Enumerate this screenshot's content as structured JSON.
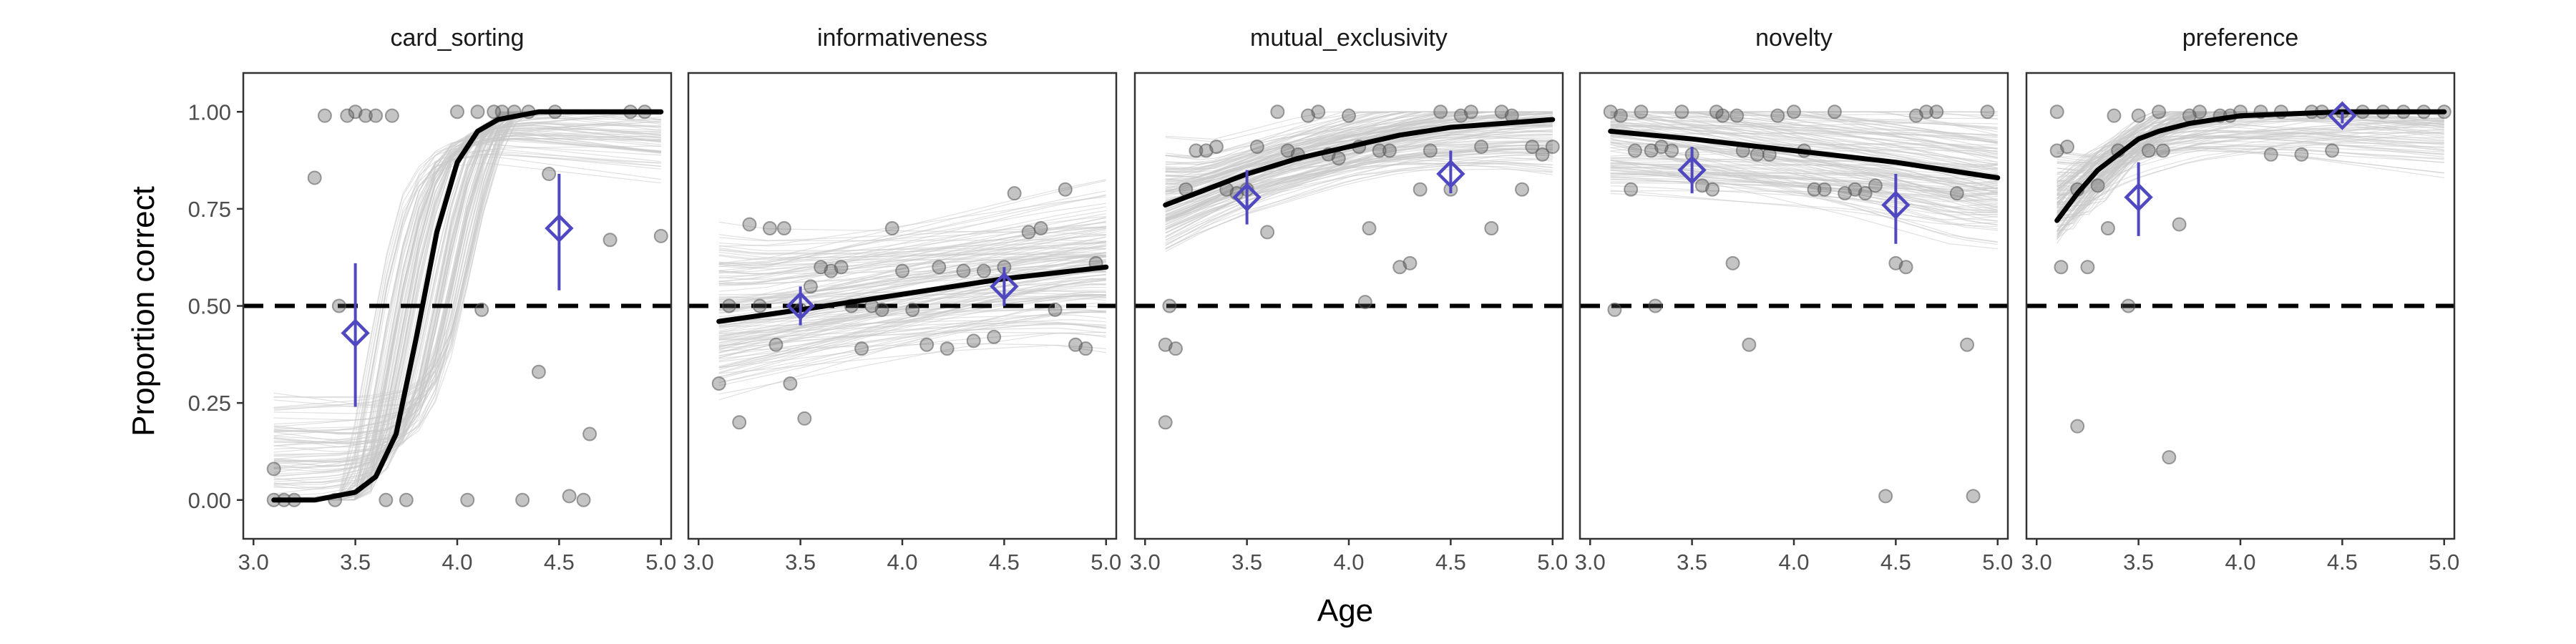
{
  "figure": {
    "xlabel": "Age",
    "ylabel": "Proportion correct"
  },
  "chart_data": {
    "type": "scatter",
    "facets": [
      "card_sorting",
      "informativeness",
      "mutual_exclusivity",
      "novelty",
      "preference"
    ],
    "xlim": [
      2.95,
      5.05
    ],
    "ylim": [
      -0.1,
      1.1
    ],
    "x_ticks": [
      3.0,
      3.5,
      4.0,
      4.5,
      5.0
    ],
    "x_tick_labels": [
      "3.0",
      "3.5",
      "4.0",
      "4.5",
      "5.0"
    ],
    "y_ticks": [
      0,
      0.25,
      0.5,
      0.75,
      1.0
    ],
    "y_tick_labels": [
      "0.00",
      "0.25",
      "0.50",
      "0.75",
      "1.00"
    ],
    "chance_line": 0.5,
    "grid": false,
    "colors": {
      "points": "#555555",
      "posterior_draws": "#c8c8c8",
      "mean_curve": "#000000",
      "chance_line": "#000000",
      "group_means": "#5048c0"
    },
    "panels": [
      {
        "name": "card_sorting",
        "points": [
          [
            3.1,
            0.08
          ],
          [
            3.1,
            0.0
          ],
          [
            3.15,
            0.0
          ],
          [
            3.2,
            0.0
          ],
          [
            3.3,
            0.83
          ],
          [
            3.35,
            0.99
          ],
          [
            3.4,
            0.0
          ],
          [
            3.42,
            0.5
          ],
          [
            3.46,
            0.99
          ],
          [
            3.5,
            1.0
          ],
          [
            3.55,
            0.99
          ],
          [
            3.6,
            0.99
          ],
          [
            3.65,
            0.0
          ],
          [
            3.68,
            0.99
          ],
          [
            3.75,
            0.0
          ],
          [
            4.0,
            1.0
          ],
          [
            4.05,
            0.0
          ],
          [
            4.1,
            1.0
          ],
          [
            4.12,
            0.49
          ],
          [
            4.18,
            1.0
          ],
          [
            4.22,
            1.0
          ],
          [
            4.28,
            1.0
          ],
          [
            4.32,
            0.0
          ],
          [
            4.35,
            1.0
          ],
          [
            4.4,
            0.33
          ],
          [
            4.45,
            0.84
          ],
          [
            4.48,
            1.0
          ],
          [
            4.55,
            0.01
          ],
          [
            4.62,
            0.0
          ],
          [
            4.65,
            0.17
          ],
          [
            4.75,
            0.67
          ],
          [
            4.85,
            1.0
          ],
          [
            4.92,
            1.0
          ],
          [
            5.0,
            0.68
          ]
        ],
        "mean_curve": [
          [
            3.1,
            0.0
          ],
          [
            3.3,
            0.0
          ],
          [
            3.5,
            0.02
          ],
          [
            3.6,
            0.06
          ],
          [
            3.7,
            0.17
          ],
          [
            3.8,
            0.42
          ],
          [
            3.9,
            0.69
          ],
          [
            4.0,
            0.87
          ],
          [
            4.1,
            0.95
          ],
          [
            4.2,
            0.98
          ],
          [
            4.4,
            1.0
          ],
          [
            5.0,
            1.0
          ]
        ],
        "group_means": [
          {
            "x": 3.5,
            "y": 0.43,
            "lo": 0.24,
            "hi": 0.61
          },
          {
            "x": 4.5,
            "y": 0.7,
            "lo": 0.54,
            "hi": 0.84
          }
        ]
      },
      {
        "name": "informativeness",
        "points": [
          [
            3.1,
            0.3
          ],
          [
            3.15,
            0.5
          ],
          [
            3.2,
            0.2
          ],
          [
            3.25,
            0.71
          ],
          [
            3.3,
            0.5
          ],
          [
            3.35,
            0.7
          ],
          [
            3.38,
            0.4
          ],
          [
            3.42,
            0.7
          ],
          [
            3.45,
            0.3
          ],
          [
            3.5,
            0.49
          ],
          [
            3.52,
            0.21
          ],
          [
            3.55,
            0.55
          ],
          [
            3.6,
            0.6
          ],
          [
            3.65,
            0.59
          ],
          [
            3.7,
            0.6
          ],
          [
            3.75,
            0.5
          ],
          [
            3.8,
            0.39
          ],
          [
            3.85,
            0.5
          ],
          [
            3.9,
            0.49
          ],
          [
            3.95,
            0.7
          ],
          [
            4.0,
            0.59
          ],
          [
            4.05,
            0.49
          ],
          [
            4.12,
            0.4
          ],
          [
            4.18,
            0.6
          ],
          [
            4.22,
            0.39
          ],
          [
            4.3,
            0.59
          ],
          [
            4.35,
            0.41
          ],
          [
            4.4,
            0.59
          ],
          [
            4.45,
            0.42
          ],
          [
            4.5,
            0.6
          ],
          [
            4.55,
            0.79
          ],
          [
            4.62,
            0.69
          ],
          [
            4.68,
            0.7
          ],
          [
            4.75,
            0.49
          ],
          [
            4.8,
            0.8
          ],
          [
            4.85,
            0.4
          ],
          [
            4.9,
            0.39
          ],
          [
            4.95,
            0.61
          ]
        ],
        "mean_curve": [
          [
            3.1,
            0.46
          ],
          [
            3.5,
            0.49
          ],
          [
            4.0,
            0.53
          ],
          [
            4.5,
            0.57
          ],
          [
            5.0,
            0.6
          ]
        ],
        "group_means": [
          {
            "x": 3.5,
            "y": 0.5,
            "lo": 0.45,
            "hi": 0.55
          },
          {
            "x": 4.5,
            "y": 0.55,
            "lo": 0.5,
            "hi": 0.6
          }
        ]
      },
      {
        "name": "mutual_exclusivity",
        "points": [
          [
            3.1,
            0.2
          ],
          [
            3.1,
            0.4
          ],
          [
            3.12,
            0.5
          ],
          [
            3.15,
            0.39
          ],
          [
            3.2,
            0.8
          ],
          [
            3.25,
            0.9
          ],
          [
            3.3,
            0.9
          ],
          [
            3.35,
            0.91
          ],
          [
            3.4,
            0.8
          ],
          [
            3.45,
            0.79
          ],
          [
            3.5,
            0.8
          ],
          [
            3.55,
            0.91
          ],
          [
            3.6,
            0.69
          ],
          [
            3.65,
            1.0
          ],
          [
            3.7,
            0.9
          ],
          [
            3.75,
            0.89
          ],
          [
            3.8,
            0.99
          ],
          [
            3.85,
            1.0
          ],
          [
            3.9,
            0.89
          ],
          [
            3.95,
            0.88
          ],
          [
            4.0,
            0.99
          ],
          [
            4.05,
            0.91
          ],
          [
            4.08,
            0.51
          ],
          [
            4.1,
            0.7
          ],
          [
            4.15,
            0.9
          ],
          [
            4.2,
            0.9
          ],
          [
            4.25,
            0.6
          ],
          [
            4.3,
            0.61
          ],
          [
            4.35,
            0.8
          ],
          [
            4.4,
            0.9
          ],
          [
            4.45,
            1.0
          ],
          [
            4.5,
            0.8
          ],
          [
            4.55,
            0.99
          ],
          [
            4.6,
            1.0
          ],
          [
            4.65,
            0.91
          ],
          [
            4.7,
            0.7
          ],
          [
            4.75,
            1.0
          ],
          [
            4.8,
            0.99
          ],
          [
            4.85,
            0.8
          ],
          [
            4.9,
            0.91
          ],
          [
            4.95,
            0.89
          ],
          [
            5.0,
            0.91
          ]
        ],
        "mean_curve": [
          [
            3.1,
            0.76
          ],
          [
            3.3,
            0.8
          ],
          [
            3.5,
            0.84
          ],
          [
            3.75,
            0.88
          ],
          [
            4.0,
            0.91
          ],
          [
            4.25,
            0.94
          ],
          [
            4.5,
            0.96
          ],
          [
            4.75,
            0.97
          ],
          [
            5.0,
            0.98
          ]
        ],
        "group_means": [
          {
            "x": 3.5,
            "y": 0.78,
            "lo": 0.71,
            "hi": 0.85
          },
          {
            "x": 4.5,
            "y": 0.84,
            "lo": 0.79,
            "hi": 0.9
          }
        ]
      },
      {
        "name": "novelty",
        "points": [
          [
            3.1,
            1.0
          ],
          [
            3.12,
            0.49
          ],
          [
            3.15,
            0.99
          ],
          [
            3.2,
            0.8
          ],
          [
            3.22,
            0.9
          ],
          [
            3.25,
            1.0
          ],
          [
            3.3,
            0.9
          ],
          [
            3.32,
            0.5
          ],
          [
            3.35,
            0.91
          ],
          [
            3.4,
            0.9
          ],
          [
            3.45,
            1.0
          ],
          [
            3.5,
            0.89
          ],
          [
            3.55,
            0.81
          ],
          [
            3.6,
            0.8
          ],
          [
            3.62,
            1.0
          ],
          [
            3.65,
            0.99
          ],
          [
            3.7,
            0.61
          ],
          [
            3.72,
            0.99
          ],
          [
            3.75,
            0.9
          ],
          [
            3.78,
            0.4
          ],
          [
            3.82,
            0.89
          ],
          [
            3.88,
            0.89
          ],
          [
            3.92,
            0.99
          ],
          [
            4.0,
            1.0
          ],
          [
            4.05,
            0.9
          ],
          [
            4.1,
            0.8
          ],
          [
            4.15,
            0.8
          ],
          [
            4.2,
            1.0
          ],
          [
            4.25,
            0.79
          ],
          [
            4.3,
            0.8
          ],
          [
            4.35,
            0.79
          ],
          [
            4.4,
            0.81
          ],
          [
            4.45,
            0.01
          ],
          [
            4.5,
            0.61
          ],
          [
            4.55,
            0.6
          ],
          [
            4.6,
            0.99
          ],
          [
            4.65,
            1.0
          ],
          [
            4.7,
            1.0
          ],
          [
            4.8,
            0.79
          ],
          [
            4.85,
            0.4
          ],
          [
            4.88,
            0.01
          ],
          [
            4.95,
            1.0
          ]
        ],
        "mean_curve": [
          [
            3.1,
            0.95
          ],
          [
            3.5,
            0.93
          ],
          [
            4.0,
            0.9
          ],
          [
            4.5,
            0.87
          ],
          [
            5.0,
            0.83
          ]
        ],
        "group_means": [
          {
            "x": 3.5,
            "y": 0.85,
            "lo": 0.79,
            "hi": 0.91
          },
          {
            "x": 4.5,
            "y": 0.76,
            "lo": 0.66,
            "hi": 0.84
          }
        ]
      },
      {
        "name": "preference",
        "points": [
          [
            3.1,
            0.9
          ],
          [
            3.1,
            1.0
          ],
          [
            3.12,
            0.6
          ],
          [
            3.15,
            0.91
          ],
          [
            3.2,
            0.8
          ],
          [
            3.2,
            0.19
          ],
          [
            3.25,
            0.6
          ],
          [
            3.3,
            0.81
          ],
          [
            3.35,
            0.7
          ],
          [
            3.38,
            0.99
          ],
          [
            3.4,
            0.9
          ],
          [
            3.45,
            0.5
          ],
          [
            3.5,
            0.99
          ],
          [
            3.55,
            0.9
          ],
          [
            3.6,
            1.0
          ],
          [
            3.62,
            0.9
          ],
          [
            3.65,
            0.11
          ],
          [
            3.7,
            0.71
          ],
          [
            3.75,
            0.99
          ],
          [
            3.8,
            1.0
          ],
          [
            3.9,
            0.99
          ],
          [
            3.95,
            0.99
          ],
          [
            4.0,
            1.0
          ],
          [
            4.1,
            1.0
          ],
          [
            4.15,
            0.89
          ],
          [
            4.2,
            1.0
          ],
          [
            4.3,
            0.89
          ],
          [
            4.35,
            1.0
          ],
          [
            4.4,
            1.0
          ],
          [
            4.45,
            0.9
          ],
          [
            4.5,
            1.0
          ],
          [
            4.6,
            1.0
          ],
          [
            4.7,
            1.0
          ],
          [
            4.8,
            1.0
          ],
          [
            4.9,
            1.0
          ],
          [
            5.0,
            1.0
          ]
        ],
        "mean_curve": [
          [
            3.1,
            0.72
          ],
          [
            3.2,
            0.79
          ],
          [
            3.3,
            0.85
          ],
          [
            3.4,
            0.89
          ],
          [
            3.5,
            0.93
          ],
          [
            3.6,
            0.95
          ],
          [
            3.75,
            0.97
          ],
          [
            4.0,
            0.99
          ],
          [
            4.5,
            1.0
          ],
          [
            5.0,
            1.0
          ]
        ],
        "group_means": [
          {
            "x": 3.5,
            "y": 0.78,
            "lo": 0.68,
            "hi": 0.87
          },
          {
            "x": 4.5,
            "y": 0.99,
            "lo": 0.97,
            "hi": 1.0
          }
        ]
      }
    ]
  }
}
